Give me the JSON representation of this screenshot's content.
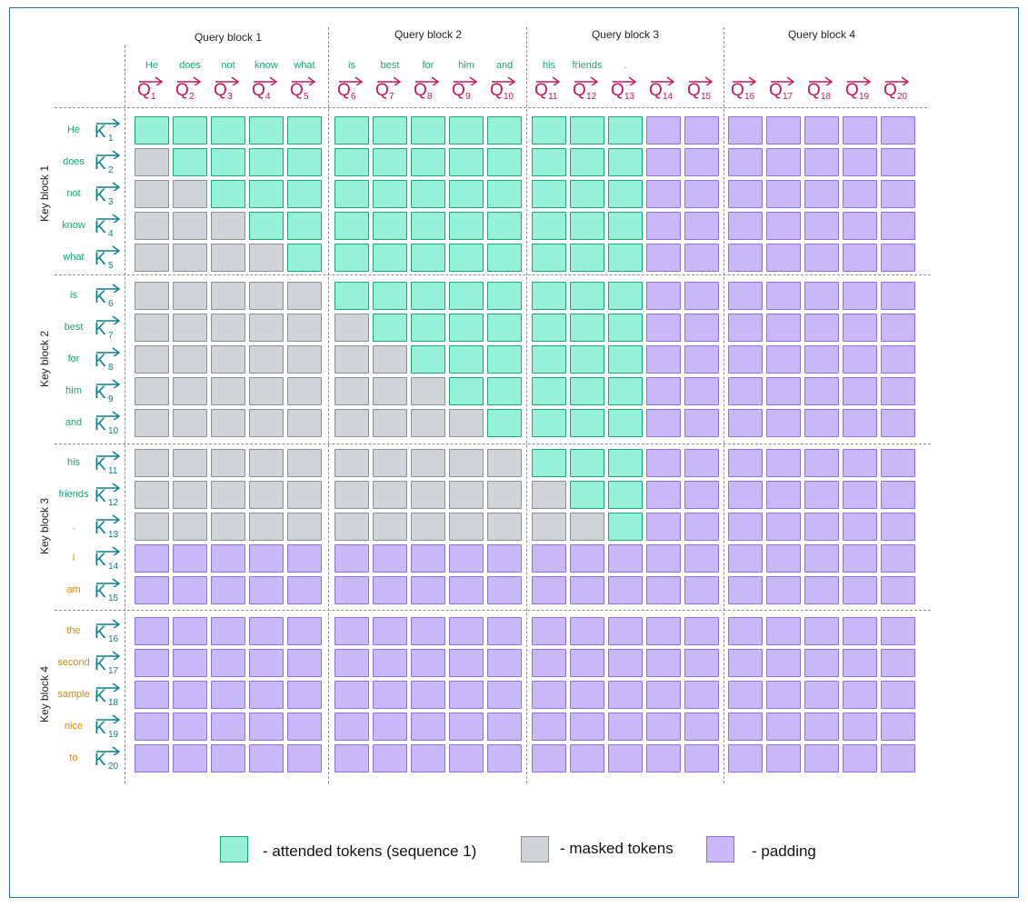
{
  "query_blocks": [
    "Query block 1",
    "Query block 2",
    "Query block 3",
    "Query block 4"
  ],
  "key_blocks": [
    "Key block 1",
    "Key block 2",
    "Key block 3",
    "Key block 4"
  ],
  "query_words": [
    "He",
    "does",
    "not",
    "know",
    "what",
    "is",
    "best",
    "for",
    "him",
    "and",
    "his",
    "friends",
    ".",
    "",
    "",
    "",
    "",
    "",
    "",
    ""
  ],
  "key_words": [
    "He",
    "does",
    "not",
    "know",
    "what",
    "is",
    "best",
    "for",
    "him",
    "and",
    "his",
    "friends",
    ".",
    "I",
    "am",
    "the",
    "second",
    "sample",
    "nice",
    "to"
  ],
  "query_vector_letter": "Q",
  "key_vector_letter": "K",
  "token_indices": [
    "1",
    "2",
    "3",
    "4",
    "5",
    "6",
    "7",
    "8",
    "9",
    "10",
    "11",
    "12",
    "13",
    "14",
    "15",
    "16",
    "17",
    "18",
    "19",
    "20"
  ],
  "sequence1_length": 13,
  "legend": {
    "attended": "- attended tokens (sequence 1)",
    "masked": "- masked tokens",
    "padding": "- padding"
  },
  "colors": {
    "attended_fill": "#97f1d9",
    "attended_border": "#19a77a",
    "masked_fill": "#d0d3d8",
    "masked_border": "#8a8f96",
    "padding_fill": "#c9b9fb",
    "padding_border": "#8f6ee3",
    "query_text": "#c2185b",
    "key_text": "#0a7f8a",
    "sequence_word": "#1aa678",
    "sample2_word": "#e08a00",
    "frame": "#2e6da4"
  }
}
